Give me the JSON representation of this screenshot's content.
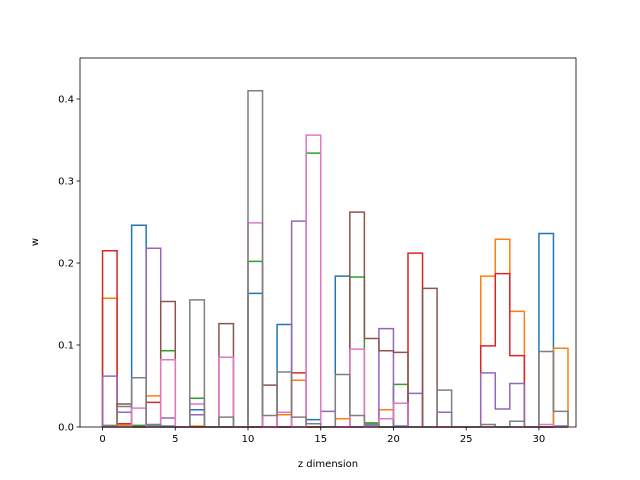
{
  "chart_data": {
    "type": "step",
    "title": "",
    "xlabel": "z dimension",
    "ylabel": "w",
    "xlim": [
      -1.55,
      32.55
    ],
    "ylim": [
      0,
      0.45
    ],
    "x_ticks": [
      0,
      5,
      10,
      15,
      20,
      25,
      30
    ],
    "y_ticks": [
      0.0,
      0.1,
      0.2,
      0.3,
      0.4
    ],
    "y_tick_labels": [
      "0.0",
      "0.1",
      "0.2",
      "0.3",
      "0.4"
    ],
    "grid": false,
    "x": [
      0,
      1,
      2,
      3,
      4,
      5,
      6,
      7,
      8,
      9,
      10,
      11,
      12,
      13,
      14,
      15,
      16,
      17,
      18,
      19,
      20,
      21,
      22,
      23,
      24,
      25,
      26,
      27,
      28,
      29,
      30,
      31
    ],
    "series": [
      {
        "color": "#1f77b4",
        "values": [
          0.001,
          0.0,
          0.246,
          0.001,
          0.001,
          0.0,
          0.021,
          0.0,
          0.0,
          0.0,
          0.163,
          0.0,
          0.125,
          0.0,
          0.009,
          0.0,
          0.184,
          0.0,
          0.001,
          0.0,
          0.001,
          0.0,
          0.0,
          0.0,
          0.0,
          0.0,
          0.0,
          0.0,
          0.0,
          0.0,
          0.236,
          0.001
        ]
      },
      {
        "color": "#ff7f0e",
        "values": [
          0.157,
          0.002,
          0.001,
          0.038,
          0.0,
          0.0,
          0.001,
          0.0,
          0.0,
          0.0,
          0.0,
          0.0,
          0.015,
          0.057,
          0.0,
          0.0,
          0.01,
          0.0,
          0.004,
          0.021,
          0.0,
          0.0,
          0.0,
          0.0,
          0.0,
          0.0,
          0.184,
          0.229,
          0.141,
          0.0,
          0.0,
          0.096
        ]
      },
      {
        "color": "#2ca02c",
        "values": [
          0.0,
          0.0,
          0.002,
          0.0,
          0.093,
          0.0,
          0.035,
          0.0,
          0.0,
          0.0,
          0.202,
          0.0,
          0.0,
          0.0,
          0.334,
          0.0,
          0.0,
          0.183,
          0.005,
          0.0,
          0.052,
          0.0,
          0.0,
          0.0,
          0.0,
          0.0,
          0.0,
          0.0,
          0.0,
          0.0,
          0.0,
          0.0
        ]
      },
      {
        "color": "#d62728",
        "values": [
          0.215,
          0.004,
          0.0,
          0.03,
          0.0,
          0.0,
          0.0,
          0.0,
          0.0,
          0.0,
          0.0,
          0.0,
          0.0,
          0.066,
          0.0,
          0.0,
          0.0,
          0.0,
          0.0,
          0.0,
          0.0,
          0.212,
          0.0,
          0.0,
          0.0,
          0.0,
          0.099,
          0.187,
          0.087,
          0.0,
          0.0,
          0.0
        ]
      },
      {
        "color": "#9467bd",
        "values": [
          0.062,
          0.018,
          0.0,
          0.218,
          0.011,
          0.0,
          0.015,
          0.0,
          0.0,
          0.0,
          0.0,
          0.0,
          0.0,
          0.251,
          0.0,
          0.019,
          0.0,
          0.0,
          0.0,
          0.12,
          0.0,
          0.041,
          0.0,
          0.018,
          0.0,
          0.0,
          0.066,
          0.022,
          0.053,
          0.0,
          0.0,
          0.0
        ]
      },
      {
        "color": "#8c564b",
        "values": [
          0.0,
          0.028,
          0.0,
          0.0,
          0.153,
          0.0,
          0.0,
          0.0,
          0.126,
          0.0,
          0.0,
          0.051,
          0.0,
          0.0,
          0.0,
          0.0,
          0.0,
          0.262,
          0.108,
          0.093,
          0.091,
          0.0,
          0.169,
          0.0,
          0.0,
          0.0,
          0.0,
          0.0,
          0.0,
          0.0,
          0.0,
          0.0
        ]
      },
      {
        "color": "#e377c2",
        "values": [
          0.0,
          0.0,
          0.023,
          0.0,
          0.082,
          0.0,
          0.028,
          0.0,
          0.085,
          0.0,
          0.249,
          0.0,
          0.018,
          0.0,
          0.356,
          0.0,
          0.0,
          0.095,
          0.0,
          0.01,
          0.029,
          0.0,
          0.0,
          0.0,
          0.0,
          0.0,
          0.0,
          0.0,
          0.0,
          0.0,
          0.003,
          0.0
        ]
      },
      {
        "color": "#7f7f7f",
        "values": [
          0.002,
          0.025,
          0.06,
          0.003,
          0.0,
          0.0,
          0.155,
          0.0,
          0.012,
          0.0,
          0.41,
          0.014,
          0.067,
          0.012,
          0.004,
          0.0,
          0.064,
          0.014,
          0.003,
          0.0,
          0.0,
          0.0,
          0.0,
          0.045,
          0.0,
          0.0,
          0.003,
          0.0,
          0.007,
          0.0,
          0.092,
          0.019
        ]
      }
    ]
  }
}
